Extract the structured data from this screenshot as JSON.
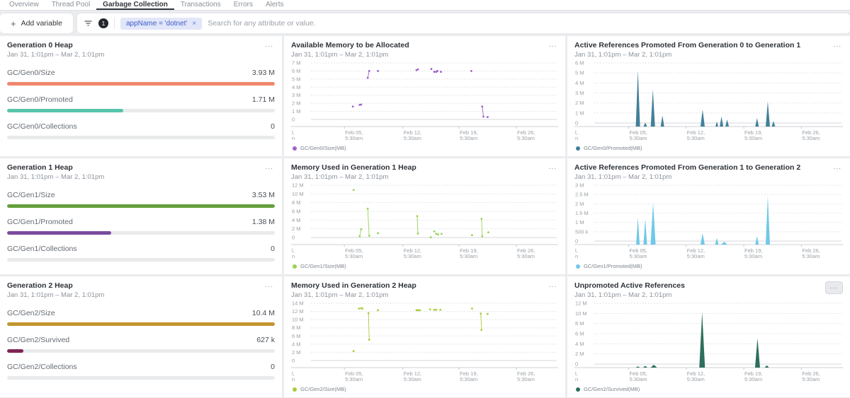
{
  "nav": {
    "tabs": [
      {
        "label": "Overview",
        "active": false
      },
      {
        "label": "Thread Pool",
        "active": false
      },
      {
        "label": "Garbage Collection",
        "active": true
      },
      {
        "label": "Transactions",
        "active": false
      },
      {
        "label": "Errors",
        "active": false
      },
      {
        "label": "Alerts",
        "active": false
      }
    ]
  },
  "toolbar": {
    "add_variable_label": "Add variable",
    "plus_glyph": "+",
    "filter_count": "1",
    "filter_pill_text": "appName = 'dotnet'",
    "filter_pill_close": "×",
    "search_placeholder": "Search for any attribute or value."
  },
  "ui": {
    "menu_ellipsis": "..."
  },
  "date_range": "Jan 31, 1:01pm – Mar 2, 1:01pm",
  "panels": [
    {
      "title": "Generation 0 Heap",
      "subtitle": "Jan 31, 1:01pm – Mar 2, 1:01pm",
      "metrics": [
        {
          "label": "GC/Gen0/Size",
          "value": "3.93 M",
          "color": "#f0876c",
          "pct": 100
        },
        {
          "label": "GC/Gen0/Promoted",
          "value": "1.71 M",
          "color": "#57c5ab",
          "pct": 43.5
        },
        {
          "label": "GC/Gen0/Collections",
          "value": "0",
          "color": "#e9eaec",
          "pct": 0
        }
      ]
    },
    {
      "title": "Generation 1 Heap",
      "subtitle": "Jan 31, 1:01pm – Mar 2, 1:01pm",
      "metrics": [
        {
          "label": "GC/Gen1/Size",
          "value": "3.53 M",
          "color": "#649f3d",
          "pct": 100
        },
        {
          "label": "GC/Gen1/Promoted",
          "value": "1.38 M",
          "color": "#7a4b9e",
          "pct": 39
        },
        {
          "label": "GC/Gen1/Collections",
          "value": "0",
          "color": "#e9eaec",
          "pct": 0
        }
      ]
    },
    {
      "title": "Generation 2 Heap",
      "subtitle": "Jan 31, 1:01pm – Mar 2, 1:01pm",
      "metrics": [
        {
          "label": "GC/Gen2/Size",
          "value": "10.4 M",
          "color": "#c2952f",
          "pct": 100
        },
        {
          "label": "GC/Gen2/Survived",
          "value": "627 k",
          "color": "#7d2553",
          "pct": 6
        },
        {
          "label": "GC/Gen2/Collections",
          "value": "0",
          "color": "#e9eaec",
          "pct": 0
        }
      ]
    }
  ],
  "chart_data": [
    {
      "type": "scatter",
      "title": "Available Memory to be Allocated",
      "subtitle": "Jan 31, 1:01pm – Mar 2, 1:01pm",
      "legend": "GC/Gen0/Size(MB)",
      "color": "#9e62c9",
      "unit": "M",
      "ymax": 7,
      "yticks": [
        {
          "v": 7,
          "label": "7 M"
        },
        {
          "v": 6,
          "label": "6 M"
        },
        {
          "v": 5,
          "label": "5 M"
        },
        {
          "v": 4,
          "label": "4 M"
        },
        {
          "v": 3,
          "label": "3 M"
        },
        {
          "v": 2,
          "label": "2 M"
        },
        {
          "v": 1,
          "label": "1 M"
        },
        {
          "v": 0,
          "label": "0"
        }
      ],
      "xticks": [
        {
          "f": 0.137,
          "l1": "Feb 05,",
          "l2": "5:30am"
        },
        {
          "f": 0.377,
          "l1": "Feb 12,",
          "l2": "5:30am"
        },
        {
          "f": 0.608,
          "l1": "Feb 19,",
          "l2": "5:30am"
        },
        {
          "f": 0.843,
          "l1": "Feb 26,",
          "l2": "5:30am"
        }
      ],
      "xclip": {
        "l1": "l,",
        "l2": "n"
      },
      "segments": [
        [
          [
            0.172,
            1.6
          ]
        ],
        [
          [
            0.2,
            1.8
          ]
        ],
        [
          [
            0.206,
            1.85
          ]
        ],
        [
          [
            0.233,
            5.15
          ],
          [
            0.239,
            6.0
          ]
        ],
        [
          [
            0.275,
            6.0
          ]
        ],
        [
          [
            0.433,
            6.1
          ]
        ],
        [
          [
            0.439,
            6.2
          ]
        ],
        [
          [
            0.494,
            6.25
          ]
        ],
        [
          [
            0.506,
            5.9
          ]
        ],
        [
          [
            0.514,
            5.9
          ]
        ],
        [
          [
            0.519,
            6.0
          ]
        ],
        [
          [
            0.533,
            5.9
          ]
        ],
        [
          [
            0.658,
            6.0
          ]
        ],
        [
          [
            0.703,
            1.6
          ],
          [
            0.708,
            0.35
          ]
        ],
        [
          [
            0.725,
            0.3
          ]
        ]
      ]
    },
    {
      "type": "spike",
      "title": "Active References Promoted From Generation 0 to Generation 1",
      "subtitle": "Jan 31, 1:01pm – Mar 2, 1:01pm",
      "legend": "GC/Gen0/Promoted(MB)",
      "color": "#41809a",
      "unit": "M",
      "ymax": 6,
      "yticks": [
        {
          "v": 6,
          "label": "6 M"
        },
        {
          "v": 5,
          "label": "5 M"
        },
        {
          "v": 4,
          "label": "4 M"
        },
        {
          "v": 3,
          "label": "3 M"
        },
        {
          "v": 2,
          "label": "2 M"
        },
        {
          "v": 1,
          "label": "1 M"
        },
        {
          "v": 0,
          "label": "0"
        }
      ],
      "xticks": [
        {
          "f": 0.14,
          "l1": "Feb 05,",
          "l2": "5:30am"
        },
        {
          "f": 0.375,
          "l1": "Feb 12,",
          "l2": "5:30am"
        },
        {
          "f": 0.61,
          "l1": "Feb 19,",
          "l2": "5:30am"
        },
        {
          "f": 0.845,
          "l1": "Feb 26,",
          "l2": "5:30am"
        }
      ],
      "xclip": {
        "l1": "l,",
        "l2": "n"
      },
      "spikes": [
        [
          0.178,
          5.6,
          6
        ],
        [
          0.208,
          0.4,
          5
        ],
        [
          0.239,
          3.7,
          6
        ],
        [
          0.278,
          1.1,
          5
        ],
        [
          0.442,
          1.7,
          6
        ],
        [
          0.5,
          0.5,
          4
        ],
        [
          0.519,
          1.0,
          5
        ],
        [
          0.542,
          0.7,
          5
        ],
        [
          0.664,
          0.85,
          5
        ],
        [
          0.708,
          2.5,
          6
        ],
        [
          0.731,
          0.55,
          5
        ]
      ]
    },
    {
      "type": "scatter",
      "title": "Memory Used in Generation 1 Heap",
      "subtitle": "Jan 31, 1:01pm – Mar 2, 1:01pm",
      "legend": "GC/Gen1/Size(MB)",
      "color": "#9ad254",
      "unit": "M",
      "ymax": 12,
      "yticks": [
        {
          "v": 12,
          "label": "12 M"
        },
        {
          "v": 10,
          "label": "10 M"
        },
        {
          "v": 8,
          "label": "8 M"
        },
        {
          "v": 6,
          "label": "6 M"
        },
        {
          "v": 4,
          "label": "4 M"
        },
        {
          "v": 2,
          "label": "2 M"
        },
        {
          "v": 0,
          "label": "0"
        }
      ],
      "xticks": [
        {
          "f": 0.137,
          "l1": "Feb 05,",
          "l2": "5:30am"
        },
        {
          "f": 0.377,
          "l1": "Feb 12,",
          "l2": "5:30am"
        },
        {
          "f": 0.608,
          "l1": "Feb 19,",
          "l2": "5:30am"
        },
        {
          "f": 0.843,
          "l1": "Feb 26,",
          "l2": "5:30am"
        }
      ],
      "xclip": {
        "l1": "l,",
        "l2": "n"
      },
      "segments": [
        [
          [
            0.175,
            10.9
          ]
        ],
        [
          [
            0.2,
            0.3
          ],
          [
            0.206,
            1.9
          ]
        ],
        [
          [
            0.233,
            6.6
          ],
          [
            0.239,
            0.4
          ]
        ],
        [
          [
            0.275,
            1.0
          ]
        ],
        [
          [
            0.436,
            4.9
          ],
          [
            0.439,
            0.9
          ]
        ],
        [
          [
            0.492,
            0.05
          ]
        ],
        [
          [
            0.506,
            1.4
          ]
        ],
        [
          [
            0.514,
            0.85
          ]
        ],
        [
          [
            0.522,
            0.7
          ]
        ],
        [
          [
            0.536,
            0.85
          ]
        ],
        [
          [
            0.661,
            0.55
          ]
        ],
        [
          [
            0.7,
            4.3
          ],
          [
            0.703,
            0.3
          ]
        ],
        [
          [
            0.728,
            1.2
          ]
        ]
      ]
    },
    {
      "type": "spike",
      "title": "Active References Promoted From Generation 1 to Generation 2",
      "subtitle": "Jan 31, 1:01pm – Mar 2, 1:01pm",
      "legend": "GC/Gen1/Promoted(MB)",
      "color": "#6fc8e8",
      "unit": "M",
      "ymax": 3,
      "yticks": [
        {
          "v": 3,
          "label": "3 M"
        },
        {
          "v": 2.5,
          "label": "2.5 M"
        },
        {
          "v": 2,
          "label": "2 M"
        },
        {
          "v": 1.5,
          "label": "1.5 M"
        },
        {
          "v": 1,
          "label": "1 M"
        },
        {
          "v": 0.5,
          "label": "500 k"
        },
        {
          "v": 0,
          "label": "0"
        }
      ],
      "xticks": [
        {
          "f": 0.14,
          "l1": "Feb 05,",
          "l2": "5:30am"
        },
        {
          "f": 0.375,
          "l1": "Feb 12,",
          "l2": "5:30am"
        },
        {
          "f": 0.61,
          "l1": "Feb 19,",
          "l2": "5:30am"
        },
        {
          "f": 0.845,
          "l1": "Feb 26,",
          "l2": "5:30am"
        }
      ],
      "xclip": {
        "l1": "l,",
        "l2": "n"
      },
      "spikes": [
        [
          0.178,
          1.45,
          5
        ],
        [
          0.208,
          1.38,
          5
        ],
        [
          0.24,
          2.25,
          7
        ],
        [
          0.442,
          0.6,
          6
        ],
        [
          0.5,
          0.35,
          5
        ],
        [
          0.53,
          0.15,
          9
        ],
        [
          0.664,
          0.45,
          5
        ],
        [
          0.708,
          2.6,
          6
        ]
      ]
    },
    {
      "type": "scatter",
      "title": "Memory Used in Generation 2 Heap",
      "subtitle": "Jan 31, 1:01pm – Mar 2, 1:01pm",
      "legend": "GC/Gen2/Size(MB)",
      "color": "#a9cb3f",
      "unit": "M",
      "ymax": 14,
      "yticks": [
        {
          "v": 14,
          "label": "14 M"
        },
        {
          "v": 12,
          "label": "12 M"
        },
        {
          "v": 10,
          "label": "10 M"
        },
        {
          "v": 8,
          "label": "8 M"
        },
        {
          "v": 6,
          "label": "6 M"
        },
        {
          "v": 4,
          "label": "4 M"
        },
        {
          "v": 2,
          "label": "2 M"
        },
        {
          "v": 0,
          "label": "0"
        }
      ],
      "xticks": [
        {
          "f": 0.137,
          "l1": "Feb 05,",
          "l2": "5:30am"
        },
        {
          "f": 0.377,
          "l1": "Feb 12,",
          "l2": "5:30am"
        },
        {
          "f": 0.608,
          "l1": "Feb 19,",
          "l2": "5:30am"
        },
        {
          "f": 0.843,
          "l1": "Feb 26,",
          "l2": "5:30am"
        }
      ],
      "xclip": {
        "l1": "l,",
        "l2": "n"
      },
      "segments": [
        [
          [
            0.175,
            2.3
          ]
        ],
        [
          [
            0.197,
            12.7
          ]
        ],
        [
          [
            0.206,
            12.8
          ]
        ],
        [
          [
            0.211,
            12.7
          ]
        ],
        [
          [
            0.236,
            11.6
          ],
          [
            0.239,
            5.1
          ]
        ],
        [
          [
            0.275,
            12.3
          ]
        ],
        [
          [
            0.433,
            12.3
          ]
        ],
        [
          [
            0.439,
            12.3
          ]
        ],
        [
          [
            0.447,
            12.3
          ]
        ],
        [
          [
            0.489,
            12.5
          ]
        ],
        [
          [
            0.506,
            12.4
          ]
        ],
        [
          [
            0.514,
            12.4
          ]
        ],
        [
          [
            0.531,
            12.4
          ]
        ],
        [
          [
            0.661,
            12.7
          ]
        ],
        [
          [
            0.697,
            11.5
          ],
          [
            0.7,
            7.5
          ]
        ],
        [
          [
            0.725,
            11.4
          ]
        ]
      ]
    },
    {
      "type": "spike",
      "title": "Unpromoted Active References",
      "subtitle": "Jan 31, 1:01pm – Mar 2, 1:01pm",
      "legend": "GC/Gen2/Survived(MB)",
      "color": "#2e6e5c",
      "unit": "M",
      "ymax": 12,
      "yticks": [
        {
          "v": 12,
          "label": "12 M"
        },
        {
          "v": 10,
          "label": "10 M"
        },
        {
          "v": 8,
          "label": "8 M"
        },
        {
          "v": 6,
          "label": "6 M"
        },
        {
          "v": 4,
          "label": "4 M"
        },
        {
          "v": 2,
          "label": "2 M"
        },
        {
          "v": 0,
          "label": "0"
        }
      ],
      "xticks": [
        {
          "f": 0.14,
          "l1": "Feb 05,",
          "l2": "5:30am"
        },
        {
          "f": 0.375,
          "l1": "Feb 12,",
          "l2": "5:30am"
        },
        {
          "f": 0.61,
          "l1": "Feb 19,",
          "l2": "5:30am"
        },
        {
          "f": 0.845,
          "l1": "Feb 26,",
          "l2": "5:30am"
        }
      ],
      "xclip": {
        "l1": "l,",
        "l2": "n"
      },
      "spikes": [
        [
          0.178,
          0.25,
          6
        ],
        [
          0.208,
          0.35,
          6
        ],
        [
          0.243,
          0.55,
          9
        ],
        [
          0.44,
          10.9,
          8
        ],
        [
          0.666,
          5.8,
          7
        ],
        [
          0.704,
          0.45,
          6
        ]
      ]
    }
  ]
}
